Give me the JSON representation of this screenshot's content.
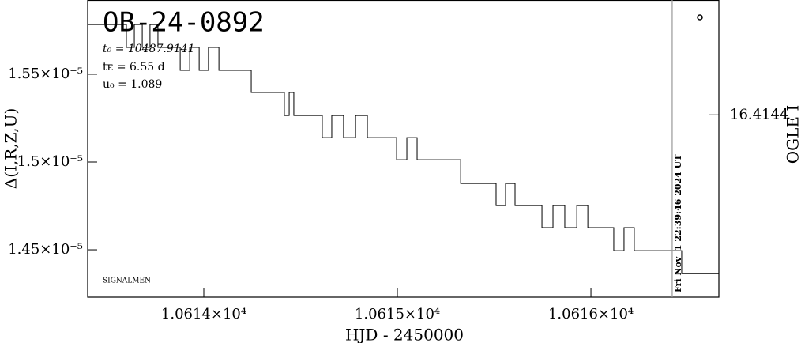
{
  "chart_data": {
    "type": "line",
    "title": "OB-24-0892",
    "annotations": [
      "t₀ = 10487.9141",
      "tᴇ = 6.55 d",
      "u₀ = 1.089"
    ],
    "corner_note": "SIGNALMEN",
    "timestamp": "Fri Nov  1 22:39:46 2024 UT",
    "xlabel": "HJD - 2450000",
    "ylabel": "Δ(I,R,Z,U)",
    "y2label": "OGLE I",
    "color": "#000000",
    "vline_x": 10616.42,
    "vline_color": "#999999",
    "xlim": [
      10613.4,
      10616.661
    ],
    "ylim": [
      1.423e-05,
      1.5923e-05
    ],
    "y2lim": [
      16.4198,
      16.411
    ],
    "xticks": [
      {
        "value": 10614,
        "label": "1.0614×10⁴"
      },
      {
        "value": 10615,
        "label": "1.0615×10⁴"
      },
      {
        "value": 10616,
        "label": "1.0616×10⁴"
      }
    ],
    "yticks": [
      {
        "value": 1.45e-05,
        "label": "1.45×10⁻⁵"
      },
      {
        "value": 1.5e-05,
        "label": "1.5×10⁻⁵"
      },
      {
        "value": 1.55e-05,
        "label": "1.55×10⁻⁵"
      }
    ],
    "y2ticks": [
      16.4144
    ],
    "x": [
      10613.4,
      10613.6,
      10613.6,
      10613.641,
      10613.641,
      10613.682,
      10613.682,
      10613.722,
      10613.722,
      10613.763,
      10613.763,
      10613.878,
      10613.878,
      10613.927,
      10613.927,
      10613.976,
      10613.976,
      10614.024,
      10614.024,
      10614.078,
      10614.078,
      10614.245,
      10614.245,
      10614.416,
      10614.416,
      10614.441,
      10614.441,
      10614.465,
      10614.465,
      10614.612,
      10614.612,
      10614.661,
      10614.661,
      10614.722,
      10614.722,
      10614.784,
      10614.784,
      10614.845,
      10614.845,
      10614.996,
      10614.996,
      10615.049,
      10615.049,
      10615.102,
      10615.102,
      10615.151,
      10615.327,
      10615.327,
      10615.51,
      10615.51,
      10615.559,
      10615.559,
      10615.608,
      10615.608,
      10615.747,
      10615.747,
      10615.804,
      10615.804,
      10615.865,
      10615.865,
      10615.927,
      10615.927,
      10615.984,
      10615.984,
      10616.118,
      10616.118,
      10616.171,
      10616.171,
      10616.224,
      10616.224,
      10616.469,
      10616.469,
      10616.661
    ],
    "values": [
      1.5783e-05,
      1.5783e-05,
      1.5653e-05,
      1.5653e-05,
      1.5783e-05,
      1.5783e-05,
      1.5653e-05,
      1.5653e-05,
      1.5783e-05,
      1.5783e-05,
      1.5653e-05,
      1.5653e-05,
      1.5522e-05,
      1.5522e-05,
      1.5653e-05,
      1.5653e-05,
      1.5522e-05,
      1.5522e-05,
      1.5653e-05,
      1.5653e-05,
      1.5522e-05,
      1.5522e-05,
      1.5396e-05,
      1.5396e-05,
      1.5265e-05,
      1.5265e-05,
      1.5396e-05,
      1.5396e-05,
      1.5265e-05,
      1.5265e-05,
      1.5139e-05,
      1.5139e-05,
      1.5265e-05,
      1.5265e-05,
      1.5139e-05,
      1.5139e-05,
      1.5265e-05,
      1.5265e-05,
      1.5139e-05,
      1.5139e-05,
      1.5013e-05,
      1.5013e-05,
      1.5139e-05,
      1.5139e-05,
      1.5013e-05,
      1.5013e-05,
      1.5013e-05,
      1.4878e-05,
      1.4878e-05,
      1.4752e-05,
      1.4752e-05,
      1.4878e-05,
      1.4878e-05,
      1.4752e-05,
      1.4752e-05,
      1.4626e-05,
      1.4626e-05,
      1.4752e-05,
      1.4752e-05,
      1.4626e-05,
      1.4626e-05,
      1.4752e-05,
      1.4752e-05,
      1.4626e-05,
      1.4626e-05,
      1.4495e-05,
      1.4495e-05,
      1.4626e-05,
      1.4626e-05,
      1.4495e-05,
      1.4495e-05,
      1.4364e-05,
      1.4364e-05
    ]
  }
}
